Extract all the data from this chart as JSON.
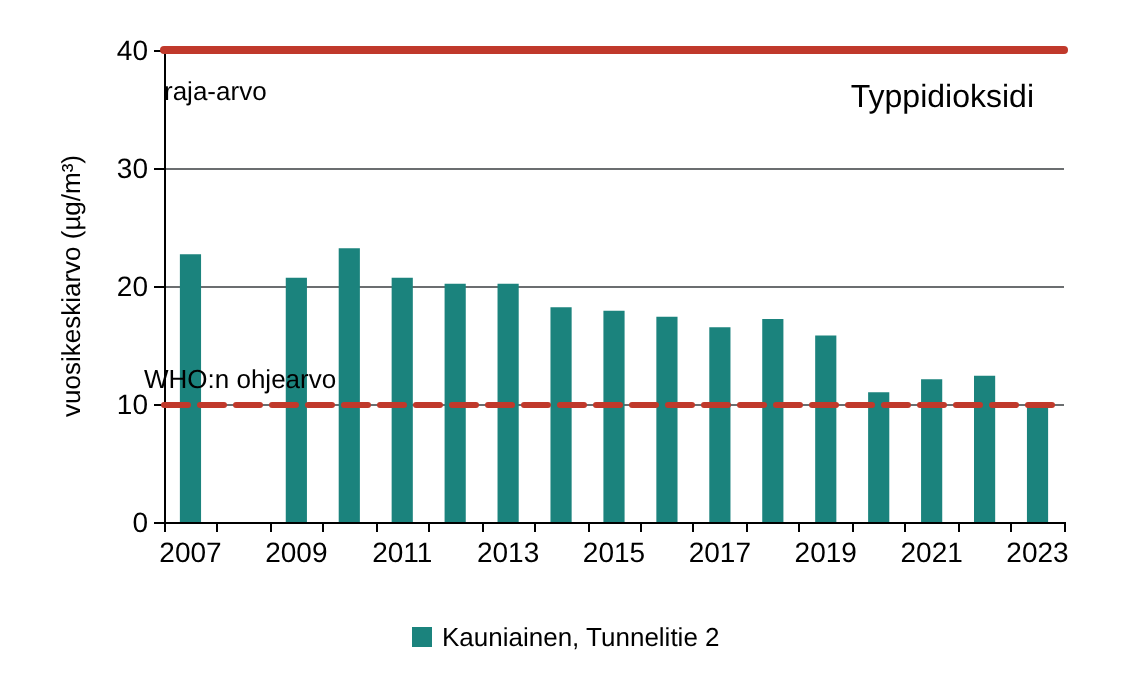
{
  "chart_data": {
    "type": "bar",
    "title": "Typpidioksidi",
    "ylabel": "vuosikeskiarvo (µg/m³)",
    "categories": [
      "2007",
      null,
      "2009",
      null,
      "2011",
      null,
      "2013",
      null,
      "2015",
      null,
      "2017",
      null,
      "2019",
      null,
      "2021",
      null,
      "2023"
    ],
    "series": [
      {
        "name": "Kauniainen, Tunnelitie 2",
        "color": "#1b837d",
        "values": [
          22.7,
          null,
          20.7,
          23.2,
          20.7,
          20.2,
          20.2,
          18.2,
          17.9,
          17.4,
          16.5,
          17.2,
          15.8,
          11.0,
          12.1,
          12.4,
          9.9
        ]
      }
    ],
    "ylim": [
      0,
      40
    ],
    "yticks": [
      0,
      10,
      20,
      30,
      40
    ],
    "grid": "y",
    "legend": "bottom",
    "ref_lines": [
      {
        "axis": "y",
        "value": 40,
        "label": "raja-arvo",
        "color": "#c0392b",
        "line_style": "solid"
      },
      {
        "axis": "y",
        "value": 10,
        "label": "WHO:n ohjearvo",
        "color": "#c0392b",
        "line_style": "dashed"
      }
    ]
  }
}
